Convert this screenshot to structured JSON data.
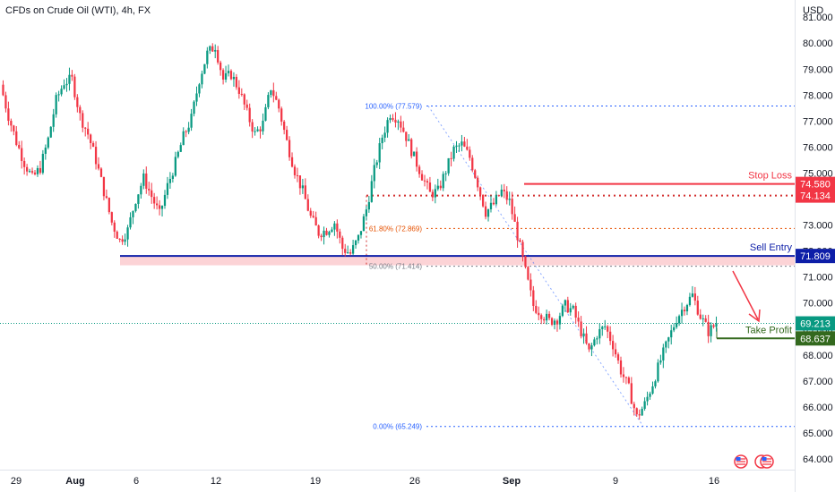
{
  "header": {
    "symbol": "CFDs on Crude Oil (WTI)",
    "sep1": ", ",
    "interval": "4h",
    "sep2": ", ",
    "source": "FX"
  },
  "currency": "USD",
  "chart_data": {
    "type": "candlestick",
    "ylim": [
      63.8,
      81.7
    ],
    "y_ticks": [
      "64.000",
      "65.000",
      "66.000",
      "67.000",
      "68.000",
      "69.000",
      "70.000",
      "71.000",
      "72.000",
      "73.000",
      "74.000",
      "75.000",
      "76.000",
      "77.000",
      "78.000",
      "79.000",
      "80.000",
      "81.000"
    ],
    "x_ticks": [
      {
        "label": "29",
        "bold": false
      },
      {
        "label": "Aug",
        "bold": true
      },
      {
        "label": "6",
        "bold": false
      },
      {
        "label": "12",
        "bold": false
      },
      {
        "label": "19",
        "bold": false
      },
      {
        "label": "26",
        "bold": false
      },
      {
        "label": "Sep",
        "bold": true
      },
      {
        "label": "9",
        "bold": false
      },
      {
        "label": "16",
        "bold": false
      }
    ],
    "colors": {
      "up": "#089981",
      "down": "#f23645",
      "ink": "#131722",
      "muted": "#787b86",
      "fib": "#2962ff"
    },
    "close_path": [
      78.4,
      77.2,
      76.2,
      75.4,
      74.8,
      75.2,
      76.3,
      77.8,
      78.5,
      78.6,
      77.2,
      76.5,
      75.5,
      74.3,
      73.1,
      72.4,
      72.8,
      74.0,
      74.8,
      74.1,
      73.4,
      74.5,
      75.4,
      76.4,
      77.1,
      78.6,
      79.6,
      79.9,
      78.6,
      78.8,
      78.2,
      77.3,
      76.5,
      76.9,
      78.3,
      77.5,
      76.2,
      75.1,
      74.3,
      73.3,
      72.7,
      72.8,
      73.1,
      72.1,
      71.9,
      72.5,
      73.6,
      75.1,
      76.4,
      77.3,
      77.1,
      76.4,
      75.6,
      74.9,
      74.2,
      74.3,
      75.1,
      75.9,
      76.1,
      75.6,
      74.6,
      73.5,
      73.8,
      74.3,
      73.9,
      72.6,
      71.2,
      69.9,
      69.6,
      69.3,
      69.4,
      69.9,
      69.7,
      68.9,
      68.1,
      68.8,
      69.1,
      68.4,
      67.4,
      66.7,
      65.6,
      66.1,
      66.9,
      67.8,
      68.6,
      69.4,
      69.9,
      70.3,
      69.5,
      68.9,
      69.2
    ],
    "fib_levels": [
      {
        "label": "100.00% (77.579)",
        "value": 77.579
      },
      {
        "label": "61.80% (72.869)",
        "value": 72.869
      },
      {
        "label": "50.00% (71.414)",
        "value": 71.414
      },
      {
        "label": "0.00% (65.249)",
        "value": 65.249
      }
    ],
    "levels": [
      {
        "name": "Stop Loss",
        "value": 74.58,
        "color": "#f23645"
      },
      {
        "name": "Sell Entry",
        "value": 71.809,
        "color": "#0d1ea8"
      },
      {
        "name": "Take Profit",
        "value": 68.637,
        "color": "#33691e"
      }
    ],
    "price_labels": [
      {
        "text": "74.580",
        "value": 74.58,
        "color": "#f23645"
      },
      {
        "text": "74.134",
        "value": 74.134,
        "color": "#f23645"
      },
      {
        "text": "71.809",
        "value": 71.809,
        "color": "#0d1ea8"
      },
      {
        "text": "69.213",
        "value": 69.213,
        "color": "#089981"
      },
      {
        "text": "68.637",
        "value": 68.637,
        "color": "#33691e"
      }
    ],
    "resistance_zone": [
      71.45,
      71.809
    ],
    "red_dotted_level": 74.134,
    "current_price": 69.213
  }
}
